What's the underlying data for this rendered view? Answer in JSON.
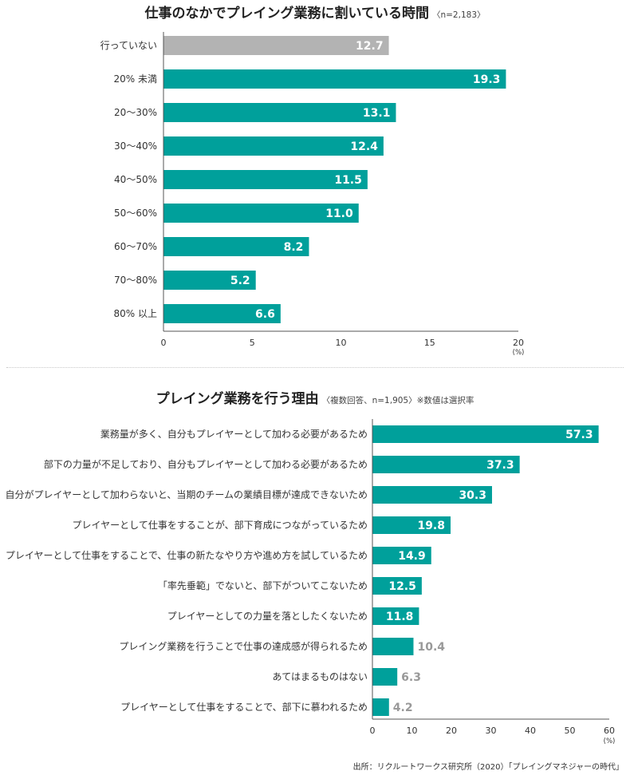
{
  "chart_data": [
    {
      "type": "bar",
      "orientation": "horizontal",
      "title": "仕事のなかでプレイング業務に割いている時間",
      "subtitle": "〈n=2,183〉",
      "categories": [
        "行っていない",
        "20% 未満",
        "20〜30%",
        "30〜40%",
        "40〜50%",
        "50〜60%",
        "60〜70%",
        "70〜80%",
        "80% 以上"
      ],
      "values": [
        12.7,
        19.3,
        13.1,
        12.4,
        11.5,
        11.0,
        8.2,
        5.2,
        6.6
      ],
      "value_labels": [
        "12.7",
        "19.3",
        "13.1",
        "12.4",
        "11.5",
        "11.0",
        "8.2",
        "5.2",
        "6.6"
      ],
      "bar_colors": [
        "#b3b3b3",
        "#00a09b",
        "#00a09b",
        "#00a09b",
        "#00a09b",
        "#00a09b",
        "#00a09b",
        "#00a09b",
        "#00a09b"
      ],
      "xlim": [
        0,
        20
      ],
      "xticks": [
        "0",
        "5",
        "10",
        "15",
        "20"
      ],
      "xunit": "(%)",
      "grid": false
    },
    {
      "type": "bar",
      "orientation": "horizontal",
      "title": "プレイング業務を行う理由",
      "subtitle": "〈複数回答、n=1,905〉※数値は選択率",
      "categories": [
        "業務量が多く、自分もプレイヤーとして加わる必要があるため",
        "部下の力量が不足しており、自分もプレイヤーとして加わる必要があるため",
        "自分がプレイヤーとして加わらないと、当期のチームの業績目標が達成できないため",
        "プレイヤーとして仕事をすることが、部下育成につながっているため",
        "プレイヤーとして仕事をすることで、仕事の新たなやり方や進め方を試しているため",
        "「率先垂範」でないと、部下がついてこないため",
        "プレイヤーとしての力量を落としたくないため",
        "プレイング業務を行うことで仕事の達成感が得られるため",
        "あてはまるものはない",
        "プレイヤーとして仕事をすることで、部下に慕われるため"
      ],
      "values": [
        57.3,
        37.3,
        30.3,
        19.8,
        14.9,
        12.5,
        11.8,
        10.4,
        6.3,
        4.2
      ],
      "value_labels": [
        "57.3",
        "37.3",
        "30.3",
        "19.8",
        "14.9",
        "12.5",
        "11.8",
        "10.4",
        "6.3",
        "4.2"
      ],
      "bar_color": "#00a09b",
      "xlim": [
        0,
        60
      ],
      "xticks": [
        "0",
        "10",
        "20",
        "30",
        "40",
        "50",
        "60"
      ],
      "xunit": "(%)",
      "grid": false
    }
  ],
  "source": "出所：リクルートワークス研究所（2020）「プレイングマネジャーの時代」",
  "colors": {
    "teal": "#00a09b",
    "gray": "#b3b3b3",
    "outside_label": "#999999"
  }
}
